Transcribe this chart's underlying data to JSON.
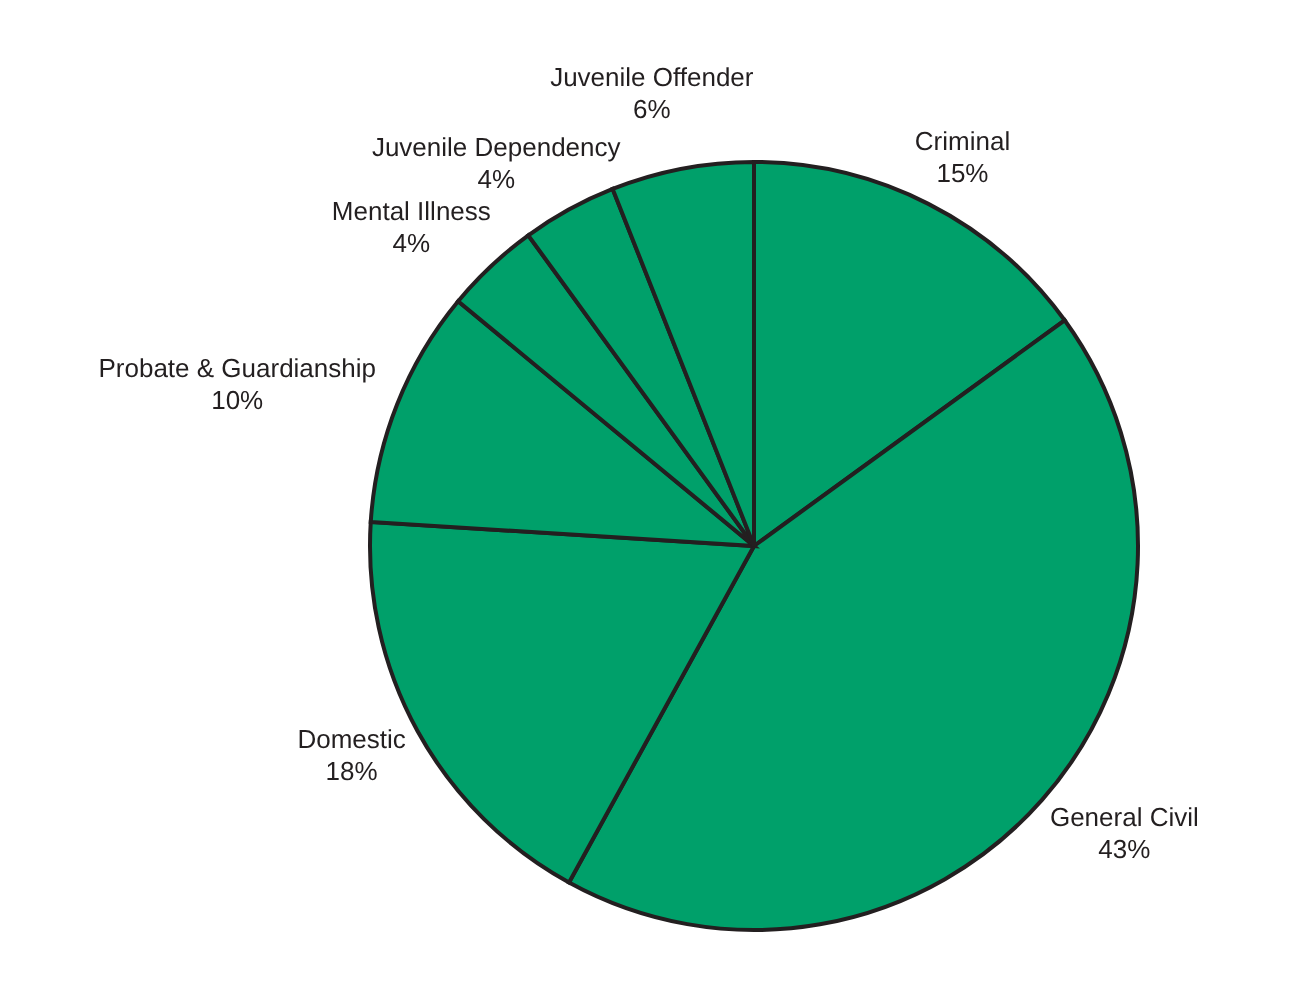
{
  "chart_data": {
    "type": "pie",
    "categories": [
      "Criminal",
      "General Civil",
      "Domestic",
      "Probate & Guardianship",
      "Mental Illness",
      "Juvenile Dependency",
      "Juvenile Offender"
    ],
    "values": [
      15,
      43,
      18,
      10,
      4,
      4,
      6
    ],
    "value_labels": [
      "15%",
      "43%",
      "18%",
      "10%",
      "4%",
      "4%",
      "6%"
    ],
    "colors": [
      "#00a06a",
      "#00a06a",
      "#00a06a",
      "#00a06a",
      "#00a06a",
      "#00a06a",
      "#00a06a"
    ],
    "legend": false
  }
}
